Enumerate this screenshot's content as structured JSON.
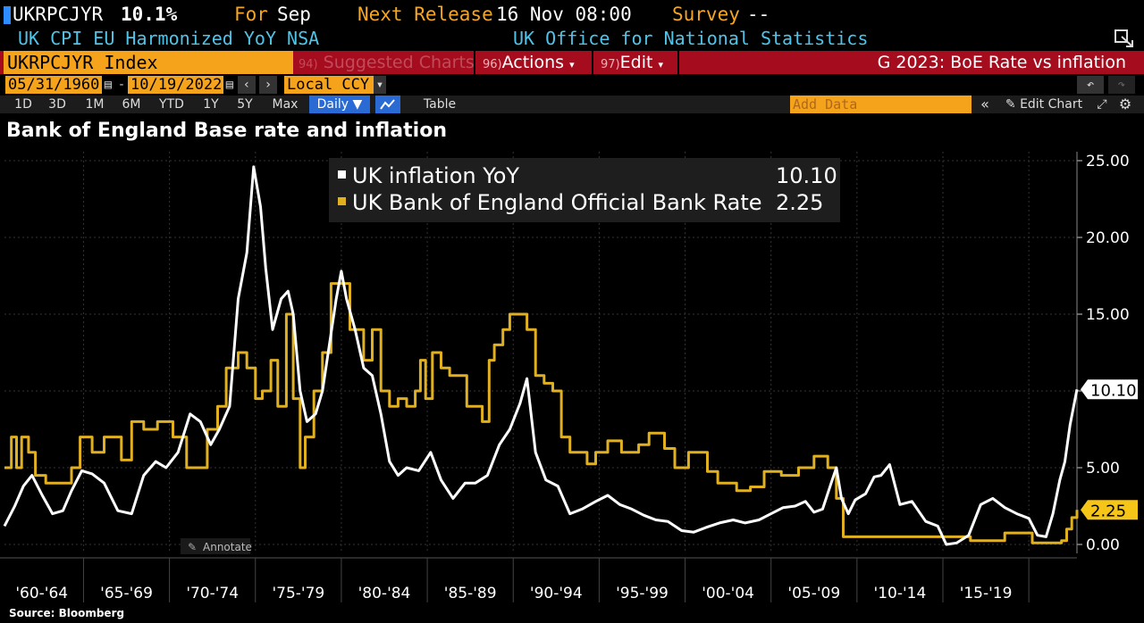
{
  "header": {
    "ticker": "UKRPCJYR",
    "value": "10.1%",
    "for_label": "For",
    "for_value": "Sep",
    "next_release_label": "Next Release",
    "next_release_value": "16 Nov 08:00",
    "survey_label": "Survey",
    "survey_value": "--",
    "description": "UK CPI EU Harmonized YoY NSA",
    "source_org": "UK Office for National Statistics"
  },
  "command_bar": {
    "security": "UKRPCJYR Index",
    "suggested_num": "94)",
    "suggested_label": "Suggested Charts",
    "actions_num": "96)",
    "actions_label": "Actions",
    "edit_num": "97)",
    "edit_label": "Edit",
    "chart_name": "G 2023: BoE Rate vs inflation"
  },
  "date_bar": {
    "start": "05/31/1960",
    "end": "10/19/2022",
    "currency": "Local CCY"
  },
  "toolbar": {
    "periods": [
      "1D",
      "3D",
      "1M",
      "6M",
      "YTD",
      "1Y",
      "5Y",
      "Max"
    ],
    "frequency": "Daily",
    "table_label": "Table",
    "add_data_placeholder": "Add Data",
    "edit_chart_label": "Edit Chart"
  },
  "colors": {
    "inflation": "#ffffff",
    "bank_rate": "#e0b020",
    "amber": "#f5a623",
    "command_red": "#a50d1e"
  },
  "annotate_label": "Annotate",
  "source_note": "Source: Bloomberg",
  "chart_data": {
    "type": "line",
    "title": "Bank of England Base rate and inflation",
    "xlim": [
      1960.4,
      2022.8
    ],
    "ylim": [
      0,
      25
    ],
    "y_ticks": [
      "25.00",
      "20.00",
      "15.00",
      "10.00",
      "5.00",
      "0.00"
    ],
    "x_ticks": [
      "'60-'64",
      "'65-'69",
      "'70-'74",
      "'75-'79",
      "'80-'84",
      "'85-'89",
      "'90-'94",
      "'95-'99",
      "'00-'04",
      "'05-'09",
      "'10-'14",
      "'15-'19"
    ],
    "grid": true,
    "legend_position": "top-center",
    "series": [
      {
        "name": "UK inflation YoY",
        "last_value": "10.10",
        "x": [
          1960.4,
          1961,
          1961.5,
          1962,
          1962.6,
          1963.2,
          1963.8,
          1964.3,
          1964.9,
          1965.5,
          1966.2,
          1967,
          1967.8,
          1968.5,
          1969.2,
          1969.8,
          1970.5,
          1971.2,
          1971.8,
          1972.4,
          1972.9,
          1973.5,
          1974,
          1974.5,
          1974.9,
          1975.3,
          1975.6,
          1976,
          1976.5,
          1976.9,
          1977.2,
          1977.6,
          1978,
          1978.5,
          1978.9,
          1979.3,
          1979.7,
          1980,
          1980.3,
          1980.8,
          1981.3,
          1981.8,
          1982.3,
          1982.8,
          1983.3,
          1983.8,
          1984.5,
          1985.2,
          1985.8,
          1986.5,
          1987.2,
          1987.8,
          1988.5,
          1989.2,
          1989.8,
          1990.4,
          1990.8,
          1991.3,
          1991.9,
          1992.6,
          1993.3,
          1994,
          1994.8,
          1995.5,
          1996.2,
          1996.9,
          1997.6,
          1998.3,
          1999,
          1999.8,
          2000.5,
          2001.2,
          2002,
          2002.8,
          2003.5,
          2004.3,
          2005,
          2005.7,
          2006.4,
          2007,
          2007.5,
          2008,
          2008.5,
          2008.8,
          2009.1,
          2009.5,
          2009.9,
          2010.5,
          2011,
          2011.4,
          2011.9,
          2012.5,
          2013.2,
          2014,
          2014.7,
          2015.2,
          2015.8,
          2016.5,
          2017.2,
          2017.9,
          2018.6,
          2019.3,
          2020,
          2020.5,
          2021,
          2021.4,
          2021.8,
          2022.1,
          2022.4,
          2022.8
        ],
        "y": [
          1.2,
          2.5,
          3.8,
          4.5,
          3.2,
          2.0,
          2.2,
          3.5,
          4.8,
          4.6,
          4.0,
          2.2,
          2.0,
          4.5,
          5.4,
          5.0,
          6.0,
          8.5,
          8.0,
          6.5,
          7.5,
          9.0,
          16.0,
          19.0,
          24.6,
          22.0,
          18.0,
          14.0,
          16.0,
          16.5,
          15.0,
          10.0,
          8.0,
          8.5,
          10.0,
          13.0,
          16.0,
          17.8,
          16.0,
          14.0,
          11.5,
          11.0,
          8.5,
          5.4,
          4.5,
          5.0,
          4.8,
          6.0,
          4.2,
          3.0,
          4.0,
          4.0,
          4.5,
          6.5,
          7.5,
          9.2,
          10.8,
          6.0,
          4.2,
          3.8,
          2.0,
          2.3,
          2.8,
          3.2,
          2.6,
          2.3,
          1.9,
          1.6,
          1.5,
          0.9,
          0.8,
          1.1,
          1.4,
          1.6,
          1.4,
          1.6,
          2.0,
          2.4,
          2.5,
          2.8,
          2.1,
          2.3,
          4.0,
          5.0,
          3.0,
          2.0,
          2.9,
          3.3,
          4.4,
          4.5,
          5.2,
          2.6,
          2.8,
          1.5,
          1.2,
          0.0,
          0.1,
          0.6,
          2.6,
          3.0,
          2.4,
          2.0,
          1.7,
          0.6,
          0.5,
          2.0,
          4.2,
          5.4,
          7.8,
          10.1
        ]
      },
      {
        "name": "UK Bank of England Official Bank Rate",
        "last_value": "2.25",
        "x": [
          1960.4,
          1960.8,
          1961.1,
          1961.4,
          1961.8,
          1962.2,
          1962.8,
          1963.3,
          1964.3,
          1964.8,
          1965.5,
          1966.2,
          1967.2,
          1967.8,
          1968.5,
          1969.3,
          1970.2,
          1971,
          1971.5,
          1972.2,
          1972.8,
          1973.3,
          1973.6,
          1974,
          1974.5,
          1975,
          1975.4,
          1975.9,
          1976.3,
          1976.8,
          1977.2,
          1977.6,
          1977.9,
          1978.4,
          1978.9,
          1979.4,
          1979.9,
          1980.5,
          1980.9,
          1981.3,
          1981.8,
          1982.3,
          1982.8,
          1983.3,
          1983.8,
          1984.3,
          1984.6,
          1984.9,
          1985.3,
          1985.8,
          1986.3,
          1986.8,
          1987.3,
          1987.8,
          1988.2,
          1988.6,
          1988.9,
          1989.4,
          1989.8,
          1990.8,
          1991.3,
          1991.8,
          1992.3,
          1992.8,
          1993.3,
          1994.3,
          1994.8,
          1995.5,
          1996.3,
          1997.3,
          1997.9,
          1998.8,
          1999.4,
          2000.2,
          2001.3,
          2001.9,
          2003,
          2003.8,
          2004.6,
          2005.6,
          2006.6,
          2007.5,
          2008.3,
          2008.8,
          2009.2,
          2016.6,
          2018.6,
          2020.2,
          2021.9,
          2022.2,
          2022.5,
          2022.8
        ],
        "y": [
          5.0,
          7.0,
          5.0,
          7.0,
          6.0,
          4.5,
          4.0,
          4.0,
          5.0,
          7.0,
          6.0,
          7.0,
          5.5,
          8.0,
          7.5,
          8.0,
          7.0,
          5.0,
          5.0,
          7.5,
          9.0,
          11.5,
          11.5,
          12.5,
          11.5,
          9.5,
          10.0,
          12.0,
          9.0,
          15.0,
          9.5,
          5.0,
          7.0,
          10.0,
          12.5,
          17.0,
          17.0,
          14.0,
          14.0,
          12.0,
          14.0,
          10.0,
          9.0,
          9.5,
          9.0,
          10.0,
          12.0,
          9.5,
          12.5,
          11.5,
          11.0,
          11.0,
          9.0,
          9.0,
          8.0,
          12.0,
          13.0,
          14.0,
          15.0,
          14.0,
          11.0,
          10.5,
          10.0,
          7.0,
          6.0,
          5.25,
          6.0,
          6.75,
          6.0,
          6.5,
          7.25,
          6.25,
          5.0,
          6.0,
          4.75,
          4.0,
          3.5,
          3.75,
          4.75,
          4.5,
          5.0,
          5.75,
          5.0,
          3.0,
          0.5,
          0.25,
          0.75,
          0.1,
          0.25,
          1.0,
          1.75,
          2.25
        ]
      }
    ]
  }
}
